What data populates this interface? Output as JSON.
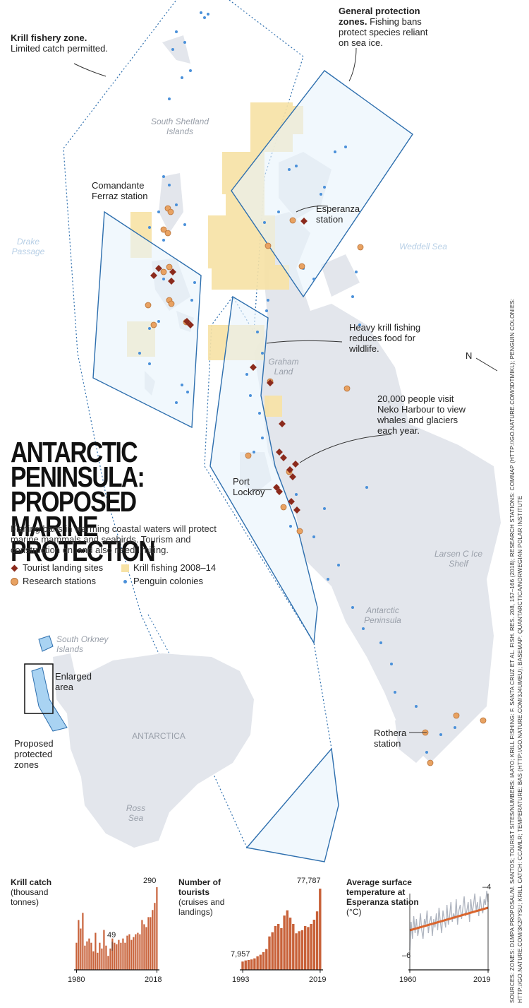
{
  "title": "ANTARCTIC PENINSULA: PROPOSED MARINE PROTECTION",
  "title_lines": [
    "ANTARCTIC",
    "PENINSULA:",
    "PROPOSED MARINE",
    "PROTECTION"
  ],
  "intro": "Fishing bans in warming coastal waters will protect marine mammals and seabirds. Tourism and construction on land also need limiting.",
  "legend": {
    "tourist": "Tourist landing sites",
    "research": "Research stations",
    "krill": "Krill fishing 2008–14",
    "penguin": "Penguin colonies"
  },
  "colors": {
    "tourist": "#8b2a1c",
    "research": "#e8a262",
    "krill": "#f7e2a5",
    "penguin": "#4a90d9",
    "land": "#e3e6ec",
    "zone": "#2e6fae",
    "bars": "#c8623a",
    "trend": "#d9652e"
  },
  "callouts": {
    "krill_zone_title": "Krill fishery zone.",
    "krill_zone_text": "Limited catch permitted.",
    "general_title": "General protection zones.",
    "general_text": "Fishing bans protect species reliant on sea ice.",
    "heavy_krill": "Heavy krill fishing reduces food for wildlife.",
    "neko": "20,000 people visit Neko Harbour to view whales and glaciers each year.",
    "north": "N"
  },
  "places": {
    "south_shetland": "South Shetland Islands",
    "drake": "Drake Passage",
    "weddell": "Weddell Sea",
    "graham": "Graham Land",
    "comandante": "Comandante Ferraz station",
    "esperanza": "Esperanza station",
    "port_lockroy": "Port Lockroy",
    "larsen": "Larsen C Ice Shelf",
    "antarctic_peninsula": "Antarctic Peninsula",
    "rothera": "Rothera station"
  },
  "inset": {
    "south_orkney": "South Orkney Islands",
    "enlarged": "Enlarged area",
    "proposed": "Proposed protected zones",
    "antarctica": "ANTARCTICA",
    "ross": "Ross Sea"
  },
  "charts": {
    "krill": {
      "title_bold": "Krill catch",
      "title_rest": "(thousand tonnes)",
      "label_max": "290",
      "label_mid": "49",
      "x_start": "1980",
      "x_end": "2018"
    },
    "tourists": {
      "title_bold": "Number of tourists",
      "title_rest": "(cruises and landings)",
      "label_start": "7,957",
      "label_end": "77,787",
      "x_start": "1993",
      "x_end": "2019"
    },
    "temperature": {
      "title_bold": "Average surface temperature at Esperanza station",
      "title_rest": "(°C)",
      "label_top": "–4",
      "label_bottom": "–6",
      "x_start": "1960",
      "x_end": "2019"
    }
  },
  "chart_data": [
    {
      "type": "bar",
      "title": "Krill catch",
      "ylabel": "thousand tonnes",
      "x_start": 1980,
      "x_end": 2018,
      "values": [
        95,
        175,
        145,
        200,
        85,
        100,
        110,
        95,
        65,
        130,
        60,
        95,
        75,
        140,
        85,
        49,
        75,
        110,
        95,
        90,
        105,
        95,
        110,
        95,
        120,
        125,
        105,
        115,
        125,
        130,
        125,
        175,
        160,
        150,
        185,
        185,
        210,
        235,
        290
      ],
      "annotations": [
        {
          "x": 1995,
          "value": 49
        },
        {
          "x": 2018,
          "value": 290
        }
      ]
    },
    {
      "type": "bar",
      "title": "Number of tourists",
      "ylabel": "cruises and landings",
      "x_start": 1993,
      "x_end": 2019,
      "values": [
        7957,
        9000,
        9500,
        10000,
        11000,
        13000,
        14500,
        17000,
        20000,
        32000,
        36000,
        42000,
        44000,
        40000,
        52000,
        57000,
        50000,
        44000,
        35000,
        37000,
        38000,
        42000,
        41000,
        44000,
        48000,
        56000,
        77787
      ]
    },
    {
      "type": "line",
      "title": "Average surface temperature at Esperanza station",
      "ylabel": "°C",
      "x_start": 1960,
      "x_end": 2019,
      "ylim": [
        -6,
        -4
      ],
      "trend": [
        {
          "x": 1960,
          "y": -5.3
        },
        {
          "x": 2019,
          "y": -4.5
        }
      ],
      "values": [
        -6.0,
        -5.0,
        -5.6,
        -4.8,
        -5.4,
        -4.9,
        -5.5,
        -5.2,
        -4.7,
        -5.3,
        -5.6,
        -4.9,
        -5.1,
        -4.6,
        -5.4,
        -5.0,
        -4.8,
        -5.5,
        -4.9,
        -5.2,
        -4.7,
        -5.3,
        -4.5,
        -5.0,
        -5.4,
        -4.6,
        -4.9,
        -5.2,
        -4.4,
        -5.1,
        -4.8,
        -4.3,
        -5.0,
        -4.7,
        -4.9,
        -4.2,
        -5.1,
        -4.6,
        -4.4,
        -4.9,
        -4.5,
        -4.1,
        -4.8,
        -4.6,
        -4.3,
        -5.0,
        -4.2,
        -4.7,
        -4.4,
        -4.0,
        -4.6,
        -4.3,
        -4.8,
        -4.1,
        -4.5,
        -4.7,
        -4.2,
        -4.4,
        -3.9,
        -4.3
      ]
    }
  ],
  "source": "SOURCES: ZONES: D1MPA PROPOSAL/M. SANTOS; TOURIST SITES/NUMBERS: IAATO; KRILL FISHING: F. SANTA CRUZ ET AL. FISH. RES. 208, 157–166 (2018); RESEARCH STATIONS: COMNAP (HTTP://GO.NATURE.COM/3DTMIKL); PENGUIN COLONIES: HTTP://GO.NATURE.COM/3K2PYSU; KRILL CATCH: CCAMLR; TEMPERATURE: BAS (HTTP://GO.NATURE.COM/3J4UMEU); BASEMAP: QUANTARCTICA/NORWEGIAN POLAR INSTITUTE"
}
